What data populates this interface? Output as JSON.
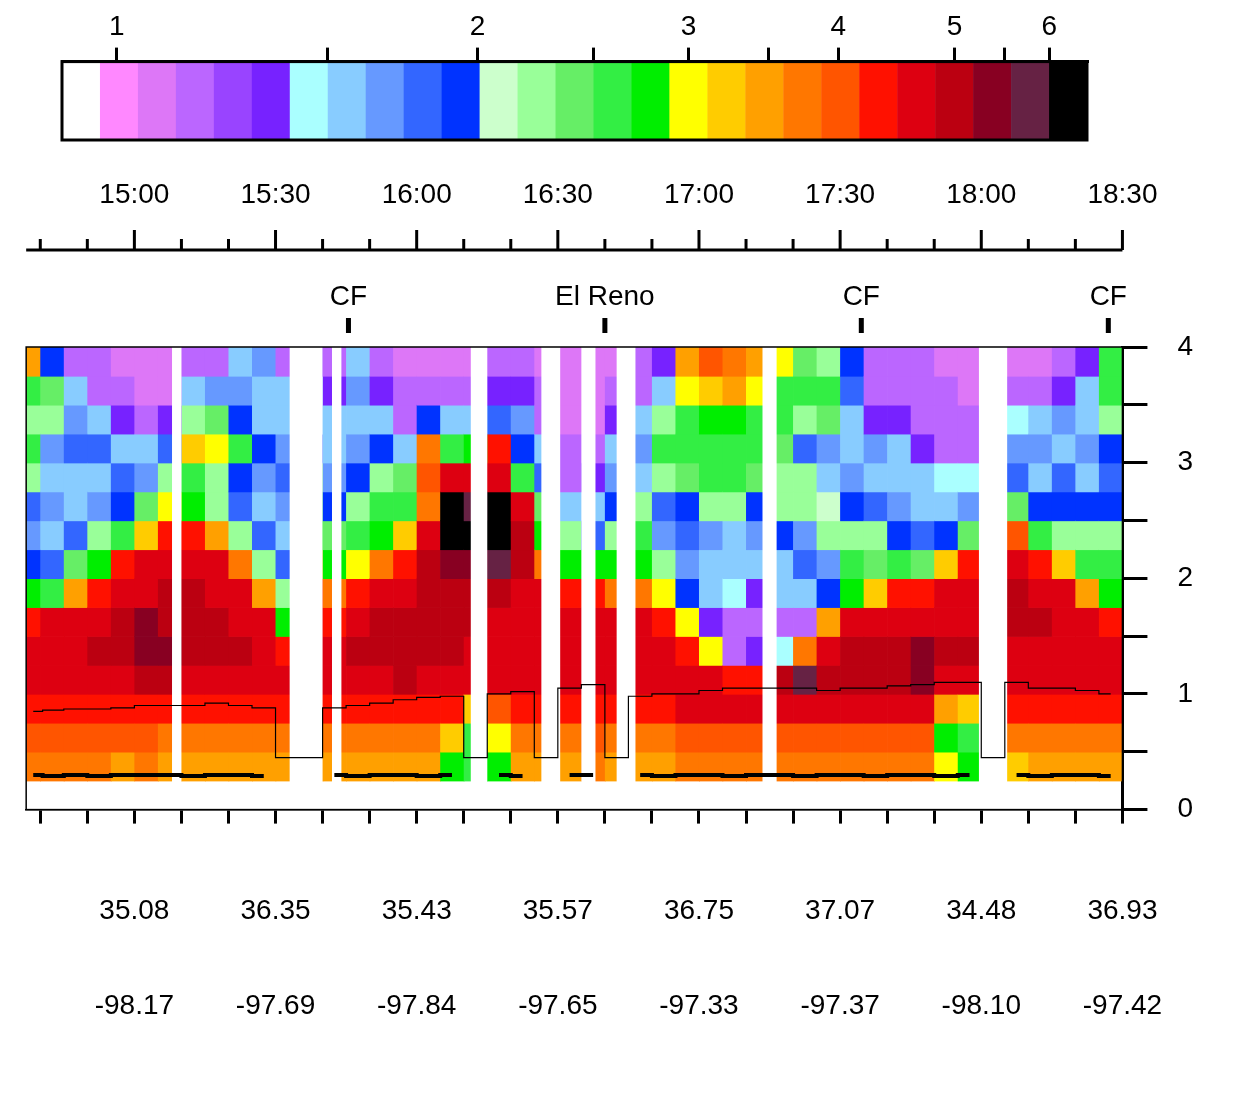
{
  "chart_data": {
    "type": "heatmap",
    "grid": false,
    "xlim": [
      877,
      1110
    ],
    "xticks": [
      {
        "value": 900,
        "label": "15:00"
      },
      {
        "value": 930,
        "label": "15:30"
      },
      {
        "value": 960,
        "label": "16:00"
      },
      {
        "value": 990,
        "label": "16:30"
      },
      {
        "value": 1020,
        "label": "17:00"
      },
      {
        "value": 1050,
        "label": "17:30"
      },
      {
        "value": 1080,
        "label": "18:00"
      },
      {
        "value": 1110,
        "label": "18:30"
      }
    ],
    "x_minor_ticks": [
      880,
      890,
      910,
      920,
      940,
      950,
      970,
      980,
      1000,
      1010,
      1030,
      1040,
      1060,
      1070,
      1090,
      1100
    ],
    "lat_ticks": [
      {
        "value": 900,
        "label": "35.08"
      },
      {
        "value": 930,
        "label": "36.35"
      },
      {
        "value": 960,
        "label": "35.43"
      },
      {
        "value": 990,
        "label": "35.57"
      },
      {
        "value": 1020,
        "label": "36.75"
      },
      {
        "value": 1050,
        "label": "37.07"
      },
      {
        "value": 1080,
        "label": "34.48"
      },
      {
        "value": 1110,
        "label": "36.93"
      }
    ],
    "lon_ticks": [
      {
        "value": 900,
        "label": "-98.17"
      },
      {
        "value": 930,
        "label": "-97.69"
      },
      {
        "value": 960,
        "label": "-97.84"
      },
      {
        "value": 990,
        "label": "-97.65"
      },
      {
        "value": 1020,
        "label": "-97.33"
      },
      {
        "value": 1050,
        "label": "-97.37"
      },
      {
        "value": 1080,
        "label": "-98.10"
      },
      {
        "value": 1110,
        "label": "-97.42"
      }
    ],
    "ylim": [
      0,
      4
    ],
    "yticks": [
      0,
      1,
      2,
      3,
      4
    ],
    "y_minor_ticks": [
      0.5,
      1.5,
      2.5,
      3.5
    ],
    "annotations": [
      {
        "x": 945.5,
        "text": "CF"
      },
      {
        "x": 1000,
        "text": "El Reno"
      },
      {
        "x": 1054.5,
        "text": "CF"
      },
      {
        "x": 1107,
        "text": "CF"
      }
    ],
    "colorbar": {
      "range": [
        0.9,
        6.45
      ],
      "log": true,
      "ticks": [
        1,
        2,
        3,
        4,
        5,
        6
      ],
      "minor_ticks": [
        1.5,
        2.5,
        3.5,
        5.5
      ],
      "colors": [
        "#ffffff",
        "#ff88ff",
        "#dd77f7",
        "#bb66ff",
        "#9944ff",
        "#7722ff",
        "#aaffff",
        "#88ccff",
        "#6699ff",
        "#3366ff",
        "#0033ff",
        "#ccffcc",
        "#99ff99",
        "#66ee66",
        "#33ee44",
        "#00ee00",
        "#ffff00",
        "#ffcc00",
        "#ffa000",
        "#ff7700",
        "#ff5500",
        "#ff1100",
        "#dd0011",
        "#bb0011",
        "#880022",
        "#662244",
        "#000000"
      ]
    },
    "cells": {
      "x_edges": [
        877,
        880,
        885,
        890,
        895,
        900,
        905,
        910,
        915,
        920,
        925,
        930,
        935,
        940,
        945,
        950,
        955,
        960,
        965,
        970,
        975,
        980,
        985,
        990,
        995,
        1000,
        1005,
        1010,
        1015,
        1020,
        1025,
        1030,
        1035,
        1040,
        1045,
        1050,
        1055,
        1060,
        1065,
        1070,
        1075,
        1080,
        1085,
        1090,
        1095,
        1100,
        1105,
        1110
      ],
      "y_edges": [
        0,
        0.25,
        0.5,
        0.75,
        1,
        1.25,
        1.5,
        1.75,
        2,
        2.25,
        2.5,
        2.75,
        3,
        3.25,
        3.5,
        3.75,
        4
      ],
      "columns": [
        [
          null,
          3.6,
          3.9,
          4.3,
          4.6,
          4.7,
          4.2,
          2.8,
          2.0,
          1.7,
          1.8,
          2.2,
          2.5,
          2.3,
          2.6,
          3.5
        ],
        [
          null,
          3.6,
          3.9,
          4.3,
          4.7,
          4.8,
          4.5,
          2.6,
          1.8,
          1.6,
          1.7,
          1.6,
          1.7,
          2.2,
          2.4,
          2.0
        ],
        [
          null,
          3.6,
          3.9,
          4.4,
          4.8,
          4.8,
          4.6,
          3.5,
          2.4,
          1.8,
          1.5,
          1.6,
          1.8,
          1.7,
          1.5,
          1.2
        ],
        [
          null,
          3.6,
          3.9,
          4.4,
          4.8,
          5.0,
          4.8,
          4.3,
          2.8,
          2.3,
          1.7,
          1.5,
          1.8,
          1.6,
          1.2,
          1.15
        ],
        [
          null,
          3.5,
          3.9,
          4.4,
          4.8,
          5.0,
          4.9,
          4.7,
          4.2,
          2.6,
          2.0,
          1.8,
          1.6,
          1.3,
          1.15,
          1.1
        ],
        [
          null,
          3.6,
          3.9,
          4.4,
          4.9,
          5.3,
          5.2,
          4.8,
          4.5,
          3.2,
          2.4,
          1.7,
          1.5,
          1.2,
          1.1,
          1.1
        ],
        [
          null,
          3.5,
          3.8,
          4.4,
          4.9,
          5.2,
          5.0,
          4.9,
          4.7,
          4.3,
          3.0,
          2.2,
          1.8,
          1.3,
          1.1,
          1.1
        ],
        [
          null,
          3.5,
          3.8,
          4.4,
          4.8,
          5.0,
          5.0,
          4.9,
          4.7,
          4.2,
          2.8,
          2.6,
          3.2,
          2.2,
          1.6,
          1.2
        ],
        [
          null,
          3.5,
          3.8,
          4.4,
          4.8,
          5.0,
          4.9,
          4.8,
          4.6,
          3.5,
          2.2,
          2.3,
          3.0,
          2.4,
          1.7,
          1.2
        ],
        [
          null,
          3.5,
          3.8,
          4.4,
          4.8,
          4.9,
          4.8,
          4.6,
          3.6,
          2.2,
          1.8,
          2.0,
          2.6,
          2.0,
          1.7,
          1.6
        ],
        [
          null,
          3.5,
          3.8,
          4.3,
          4.7,
          4.8,
          4.5,
          3.4,
          2.3,
          1.8,
          1.6,
          1.7,
          1.9,
          1.5,
          1.6,
          1.7
        ],
        [
          null,
          3.5,
          3.8,
          4.3,
          4.6,
          4.3,
          2.8,
          2.2,
          1.8,
          1.6,
          1.7,
          1.8,
          1.7,
          1.6,
          1.5,
          1.2
        ],
        [
          null,
          3.5,
          3.8,
          4.3,
          4.6,
          4.6,
          4.5,
          4.2,
          3.4,
          2.8,
          2.6,
          2.4,
          2.0,
          1.6,
          1.4,
          1.3
        ],
        [
          null,
          3.5,
          3.8,
          4.4,
          4.7,
          4.7,
          4.4,
          3.6,
          2.8,
          2.4,
          2.0,
          1.7,
          1.5,
          1.6,
          1.3,
          1.15
        ],
        [
          null,
          3.5,
          3.8,
          4.4,
          4.8,
          4.9,
          4.7,
          4.2,
          2.9,
          2.5,
          2.3,
          2.0,
          1.7,
          1.5,
          1.7,
          1.6
        ],
        [
          null,
          3.5,
          3.8,
          4.4,
          4.8,
          5.0,
          4.9,
          4.6,
          3.8,
          2.8,
          2.5,
          2.2,
          1.9,
          1.6,
          1.3,
          1.2
        ],
        [
          null,
          3.5,
          3.8,
          4.4,
          4.9,
          5.0,
          5.0,
          4.8,
          4.4,
          3.2,
          2.6,
          2.4,
          1.6,
          1.2,
          1.15,
          1.1
        ],
        [
          null,
          3.5,
          3.8,
          4.4,
          4.8,
          4.9,
          5.0,
          5.0,
          4.9,
          4.5,
          3.8,
          4.0,
          3.6,
          2.0,
          1.15,
          1.1
        ],
        [
          null,
          2.8,
          3.3,
          4.3,
          4.8,
          4.9,
          5.0,
          5.1,
          5.5,
          6.3,
          6.2,
          4.5,
          2.6,
          1.6,
          1.2,
          1.1
        ],
        [
          null,
          2.5,
          2.6,
          3.2,
          4.6,
          4.8,
          4.9,
          5.0,
          5.4,
          6.2,
          5.8,
          4.8,
          2.8,
          1.5,
          1.15,
          1.1
        ],
        [
          null,
          2.7,
          2.9,
          4.0,
          4.6,
          4.7,
          4.8,
          5.0,
          5.6,
          6.3,
          6.1,
          4.8,
          4.2,
          1.8,
          1.3,
          1.15
        ],
        [
          null,
          3.5,
          3.8,
          4.3,
          4.5,
          4.6,
          4.7,
          4.8,
          4.9,
          5.0,
          4.6,
          2.6,
          1.9,
          1.7,
          1.3,
          1.15
        ],
        [
          null,
          3.5,
          3.8,
          4.3,
          4.6,
          4.7,
          4.7,
          4.6,
          3.8,
          2.8,
          2.4,
          1.8,
          1.5,
          1.2,
          1.15,
          1.1
        ],
        [
          null,
          3.5,
          3.8,
          4.3,
          4.6,
          4.7,
          4.6,
          4.3,
          2.8,
          2.3,
          1.6,
          1.2,
          1.15,
          1.1,
          1.1,
          1.1
        ],
        [
          null,
          3.6,
          3.9,
          4.4,
          4.7,
          4.7,
          4.6,
          4.2,
          2.7,
          1.8,
          1.5,
          1.3,
          1.15,
          1.1,
          1.1,
          1.1
        ],
        [
          null,
          3.5,
          3.8,
          4.3,
          4.6,
          4.7,
          4.5,
          3.8,
          2.8,
          2.3,
          2.0,
          1.7,
          1.5,
          1.3,
          1.15,
          1.1
        ],
        [
          null,
          3.5,
          3.8,
          4.4,
          4.7,
          4.7,
          4.6,
          3.8,
          2.8,
          2.5,
          2.2,
          1.6,
          1.7,
          1.5,
          1.2,
          1.15
        ],
        [
          null,
          3.5,
          3.8,
          4.4,
          4.7,
          4.7,
          4.3,
          3.0,
          2.3,
          1.7,
          1.8,
          2.2,
          2.5,
          2.3,
          1.6,
          1.3
        ],
        [
          null,
          3.6,
          3.9,
          4.5,
          4.7,
          4.4,
          3.0,
          2.0,
          1.7,
          1.8,
          2.0,
          2.4,
          2.6,
          2.6,
          3.0,
          3.4
        ],
        [
          null,
          3.6,
          3.9,
          4.5,
          4.5,
          3.0,
          1.3,
          1.5,
          1.6,
          1.7,
          2.2,
          2.5,
          2.6,
          2.7,
          3.3,
          4.0
        ],
        [
          null,
          3.6,
          3.9,
          4.6,
          4.3,
          1.2,
          1.2,
          1.4,
          1.5,
          1.6,
          2.3,
          2.6,
          2.6,
          2.8,
          3.4,
          3.8
        ],
        [
          null,
          3.6,
          3.9,
          4.6,
          4.4,
          1.3,
          1.2,
          1.3,
          1.5,
          1.7,
          2.0,
          2.4,
          2.5,
          2.6,
          3.0,
          3.5
        ],
        [
          null,
          3.6,
          3.9,
          4.6,
          5.0,
          1.4,
          1.2,
          1.5,
          1.6,
          2.0,
          2.2,
          2.3,
          2.4,
          2.5,
          2.6,
          3.0
        ],
        [
          null,
          3.6,
          3.9,
          4.7,
          5.6,
          3.8,
          1.2,
          1.6,
          1.8,
          1.7,
          2.3,
          2.2,
          1.8,
          2.3,
          2.5,
          2.4
        ],
        [
          null,
          3.6,
          3.9,
          4.6,
          5.0,
          4.8,
          3.5,
          2.0,
          1.7,
          2.2,
          2.1,
          1.6,
          1.7,
          2.4,
          2.5,
          2.3
        ],
        [
          null,
          3.6,
          3.9,
          4.6,
          4.9,
          4.9,
          4.5,
          2.8,
          2.5,
          2.3,
          1.9,
          1.7,
          1.6,
          1.6,
          1.8,
          2.0
        ],
        [
          null,
          3.6,
          3.9,
          4.6,
          4.9,
          4.9,
          4.6,
          3.2,
          2.4,
          2.2,
          1.8,
          1.5,
          1.7,
          1.3,
          1.2,
          1.2
        ],
        [
          null,
          3.6,
          3.9,
          4.6,
          5.0,
          5.0,
          4.7,
          4.2,
          2.6,
          2.0,
          1.7,
          1.6,
          1.5,
          1.3,
          1.2,
          1.15
        ],
        [
          null,
          3.6,
          3.9,
          4.6,
          5.4,
          5.2,
          4.8,
          4.4,
          2.4,
          1.8,
          1.6,
          1.5,
          1.3,
          1.2,
          1.15,
          1.15
        ],
        [
          null,
          2.9,
          2.8,
          3.4,
          4.7,
          4.9,
          4.8,
          4.6,
          3.2,
          2.0,
          1.6,
          1.4,
          1.2,
          1.15,
          1.15,
          1.1
        ],
        [
          null,
          2.7,
          2.6,
          3.3,
          4.8,
          4.9,
          4.8,
          4.7,
          4.2,
          2.4,
          1.7,
          1.4,
          1.2,
          1.15,
          1.1,
          1.1
        ],
        [
          null,
          2.6,
          2.6,
          3.4,
          4.5,
          4.7,
          4.8,
          4.8,
          4.7,
          4.3,
          2.6,
          1.6,
          1.3,
          1.2,
          1.15,
          1.1
        ],
        [
          null,
          3.2,
          3.6,
          4.3,
          4.7,
          4.8,
          4.9,
          4.9,
          4.7,
          4.0,
          2.4,
          1.8,
          1.7,
          1.4,
          1.15,
          1.1
        ],
        [
          null,
          3.5,
          3.8,
          4.4,
          4.7,
          4.8,
          4.9,
          4.8,
          4.4,
          2.6,
          1.9,
          1.6,
          1.7,
          1.6,
          1.2,
          1.1
        ],
        [
          null,
          3.5,
          3.8,
          4.4,
          4.7,
          4.8,
          4.8,
          4.6,
          3.2,
          2.3,
          1.9,
          1.8,
          1.6,
          1.7,
          1.3,
          1.15
        ],
        [
          null,
          3.5,
          3.8,
          4.4,
          4.7,
          4.8,
          4.6,
          3.4,
          2.5,
          2.2,
          1.9,
          1.6,
          1.7,
          1.6,
          1.5,
          1.3
        ],
        [
          null,
          3.5,
          3.8,
          4.4,
          4.7,
          4.7,
          4.2,
          2.8,
          2.5,
          2.2,
          1.9,
          1.8,
          1.9,
          2.3,
          2.5,
          2.6
        ]
      ]
    },
    "data_gaps": [
      [
        908,
        910
      ],
      [
        933,
        940
      ],
      [
        942,
        944
      ],
      [
        971.5,
        975
      ],
      [
        986.5,
        990.5
      ],
      [
        995,
        998
      ],
      [
        1002.5,
        1006.5
      ],
      [
        1033.5,
        1036.5
      ],
      [
        1079.5,
        1085.5
      ]
    ],
    "x": [
      878.5,
      882.5,
      887.5,
      892.5,
      897.5,
      902.5,
      907.5,
      912.5,
      917.5,
      922.5,
      927.5,
      932.5,
      937.5,
      942.5,
      947.5,
      952.5,
      957.5,
      962.5,
      967.5,
      972.5,
      977.5,
      982.5,
      987.5,
      992.5,
      997.5,
      1002.5,
      1007.5,
      1012.5,
      1017.5,
      1022.5,
      1027.5,
      1032.5,
      1037.5,
      1042.5,
      1047.5,
      1052.5,
      1057.5,
      1062.5,
      1067.5,
      1072.5,
      1077.5,
      1082.5,
      1087.5,
      1092.5,
      1097.5,
      1102.5,
      1107.5
    ],
    "series": [
      {
        "type": "line",
        "color": "#000000",
        "line_style": "solid",
        "marker": "none",
        "values": [
          0.3,
          0.29,
          0.3,
          0.29,
          0.3,
          0.3,
          0.3,
          0.29,
          0.3,
          0.3,
          0.29,
          null,
          null,
          0.3,
          0.29,
          0.3,
          0.3,
          0.29,
          0.3,
          null,
          0.3,
          0.29,
          null,
          0.3,
          0.3,
          null,
          0.3,
          0.29,
          0.3,
          0.3,
          0.29,
          0.3,
          0.3,
          0.29,
          0.3,
          0.3,
          0.29,
          0.3,
          0.3,
          0.29,
          0.3,
          null,
          0.3,
          0.29,
          0.3,
          0.3,
          0.29
        ]
      },
      {
        "type": "line",
        "color": "#000000",
        "line_style": "solid",
        "marker": "none",
        "values": [
          0.85,
          0.86,
          0.87,
          0.87,
          0.88,
          0.9,
          0.9,
          0.9,
          0.92,
          0.9,
          0.88,
          0.45,
          0.45,
          0.88,
          0.9,
          0.92,
          0.95,
          0.97,
          0.98,
          0.45,
          1.0,
          1.02,
          0.45,
          1.05,
          1.08,
          0.45,
          0.98,
          1.0,
          1.0,
          1.03,
          1.05,
          1.05,
          1.05,
          1.05,
          1.03,
          1.05,
          1.05,
          1.07,
          1.08,
          1.1,
          1.1,
          0.45,
          1.1,
          1.05,
          1.05,
          1.03,
          1.0
        ]
      }
    ]
  }
}
